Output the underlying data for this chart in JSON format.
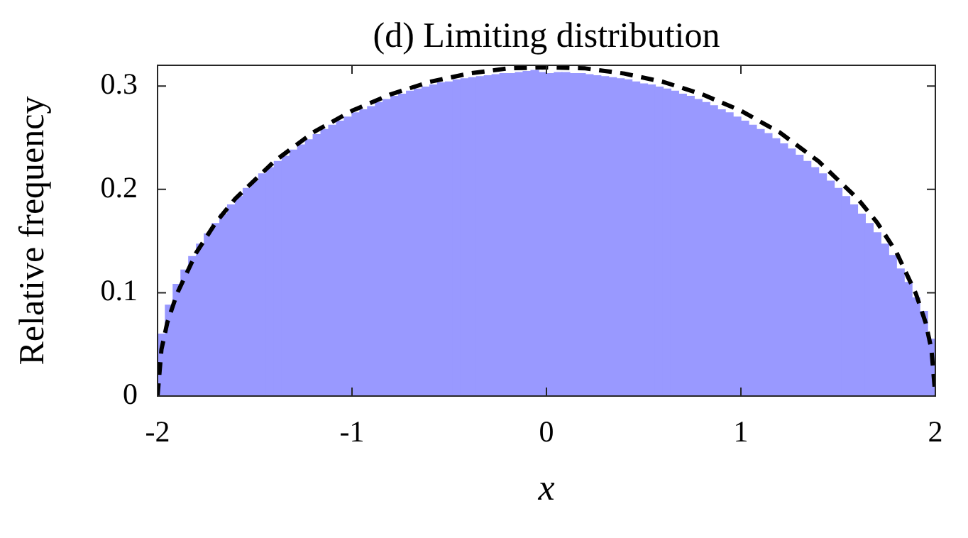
{
  "chart_data": {
    "type": "histogram",
    "title": "(d) Limiting distribution",
    "xlabel": "x",
    "ylabel": "Relative frequency",
    "bins": [
      -2,
      -1.96,
      -1.92,
      -1.88,
      -1.84,
      -1.8,
      -1.76,
      -1.72,
      -1.68,
      -1.64,
      -1.6,
      -1.56,
      -1.52,
      -1.48,
      -1.44,
      -1.4,
      -1.36,
      -1.32,
      -1.28,
      -1.24,
      -1.2,
      -1.16,
      -1.12,
      -1.08,
      -1.04,
      -1,
      -0.96,
      -0.92,
      -0.88,
      -0.84,
      -0.8,
      -0.76,
      -0.72,
      -0.68,
      -0.64,
      -0.6,
      -0.56,
      -0.52,
      -0.48,
      -0.44,
      -0.4,
      -0.36,
      -0.32,
      -0.28,
      -0.24,
      -0.2,
      -0.16,
      -0.12,
      -0.08,
      -0.04,
      0,
      0.04,
      0.08,
      0.12,
      0.16,
      0.2,
      0.24,
      0.28,
      0.32,
      0.36,
      0.4,
      0.44,
      0.48,
      0.52,
      0.56,
      0.6,
      0.64,
      0.68,
      0.72,
      0.76,
      0.8,
      0.84,
      0.88,
      0.92,
      0.96,
      1,
      1.04,
      1.08,
      1.12,
      1.16,
      1.2,
      1.24,
      1.28,
      1.32,
      1.36,
      1.4,
      1.44,
      1.48,
      1.52,
      1.56,
      1.6,
      1.64,
      1.68,
      1.72,
      1.76,
      1.8,
      1.84,
      1.88,
      1.92,
      1.96,
      2
    ],
    "series": [
      {
        "type": "histogram",
        "color": "#9999ff",
        "values": [
          0.06,
          0.088,
          0.108,
          0.122,
          0.135,
          0.147,
          0.157,
          0.167,
          0.176,
          0.185,
          0.193,
          0.201,
          0.208,
          0.215,
          0.221,
          0.227,
          0.232,
          0.238,
          0.243,
          0.248,
          0.253,
          0.258,
          0.262,
          0.266,
          0.27,
          0.274,
          0.277,
          0.28,
          0.284,
          0.287,
          0.29,
          0.292,
          0.295,
          0.297,
          0.299,
          0.301,
          0.303,
          0.304,
          0.306,
          0.307,
          0.308,
          0.309,
          0.31,
          0.311,
          0.312,
          0.312,
          0.313,
          0.314,
          0.315,
          0.313,
          0.312,
          0.313,
          0.313,
          0.312,
          0.312,
          0.311,
          0.31,
          0.309,
          0.308,
          0.307,
          0.306,
          0.304,
          0.302,
          0.301,
          0.299,
          0.297,
          0.295,
          0.292,
          0.29,
          0.287,
          0.284,
          0.281,
          0.277,
          0.274,
          0.27,
          0.266,
          0.262,
          0.258,
          0.254,
          0.249,
          0.244,
          0.239,
          0.233,
          0.227,
          0.221,
          0.215,
          0.208,
          0.201,
          0.193,
          0.185,
          0.176,
          0.167,
          0.158,
          0.147,
          0.136,
          0.123,
          0.11,
          0.095,
          0.082,
          0.055
        ]
      },
      {
        "type": "line",
        "color": "#000000",
        "line_style": "dashed",
        "marker": "none",
        "x": [
          -2,
          -1.98,
          -1.95,
          -1.9,
          -1.8,
          -1.7,
          -1.6,
          -1.4,
          -1.2,
          -1,
          -0.8,
          -0.6,
          -0.4,
          -0.2,
          0,
          0.2,
          0.4,
          0.6,
          0.8,
          1,
          1.2,
          1.4,
          1.6,
          1.7,
          1.8,
          1.9,
          1.95,
          1.98,
          2
        ],
        "values": [
          0,
          0.045,
          0.071,
          0.099,
          0.139,
          0.168,
          0.191,
          0.227,
          0.255,
          0.276,
          0.292,
          0.304,
          0.312,
          0.317,
          0.318,
          0.317,
          0.312,
          0.304,
          0.292,
          0.276,
          0.255,
          0.227,
          0.191,
          0.168,
          0.139,
          0.099,
          0.071,
          0.045,
          0
        ]
      }
    ],
    "xlim": [
      -2,
      2
    ],
    "xticks": [
      -2,
      -1,
      0,
      1,
      2
    ],
    "ylim": [
      0,
      0.32
    ],
    "yticks": [
      0,
      0.1,
      0.2,
      0.3
    ],
    "grid": false,
    "legend": false
  }
}
